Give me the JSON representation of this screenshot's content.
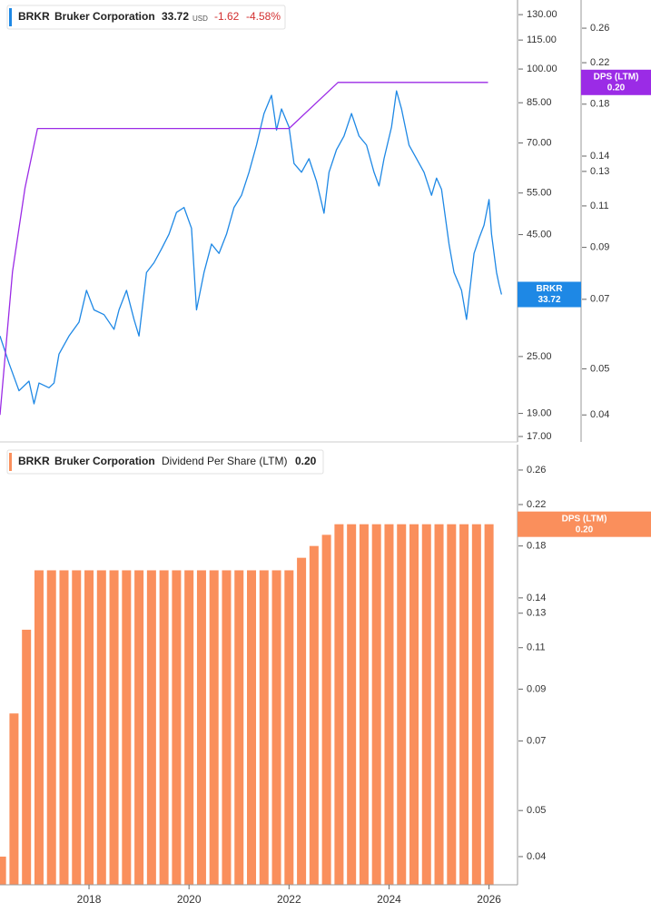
{
  "chart_data": [
    {
      "type": "line",
      "symbol": "BRKR",
      "company": "Bruker Corporation",
      "currency": "USD",
      "change": "-1.62",
      "change_percent": "-4.58%",
      "log": true,
      "xlim": [
        2016.22,
        2026.57
      ],
      "ylim": [
        16.56,
        139.5
      ],
      "yticks": [
        {
          "value": 130,
          "label": "130.00"
        },
        {
          "value": 115,
          "label": "115.00"
        },
        {
          "value": 100,
          "label": "100.00"
        },
        {
          "value": 85,
          "label": "85.00"
        },
        {
          "value": 70,
          "label": "70.00"
        },
        {
          "value": 55,
          "label": "55.00"
        },
        {
          "value": 45,
          "label": "45.00"
        },
        {
          "value": 25,
          "label": "25.00"
        },
        {
          "value": 19,
          "label": "19.00"
        },
        {
          "value": 17,
          "label": "17.00"
        }
      ],
      "y2lim": [
        0.0351,
        0.298
      ],
      "y2ticks": [
        0.26,
        0.22,
        0.18,
        0.14,
        0.13,
        0.11,
        0.09,
        0.07,
        0.05,
        0.04
      ],
      "series": [
        {
          "name": "BRKR",
          "color": "#1e88e5",
          "x": [
            2016.22,
            2016.4,
            2016.6,
            2016.8,
            2016.9,
            2017.0,
            2017.2,
            2017.3,
            2017.4,
            2017.6,
            2017.8,
            2017.95,
            2018.1,
            2018.3,
            2018.5,
            2018.6,
            2018.75,
            2018.9,
            2019.0,
            2019.15,
            2019.3,
            2019.45,
            2019.6,
            2019.75,
            2019.9,
            2020.05,
            2020.15,
            2020.3,
            2020.45,
            2020.6,
            2020.75,
            2020.9,
            2021.05,
            2021.2,
            2021.35,
            2021.5,
            2021.65,
            2021.75,
            2021.85,
            2022.0,
            2022.1,
            2022.25,
            2022.4,
            2022.55,
            2022.7,
            2022.8,
            2022.95,
            2023.1,
            2023.25,
            2023.4,
            2023.55,
            2023.7,
            2023.8,
            2023.9,
            2024.05,
            2024.15,
            2024.25,
            2024.4,
            2024.55,
            2024.7,
            2024.85,
            2024.95,
            2025.05,
            2025.2,
            2025.3,
            2025.45,
            2025.55,
            2025.7,
            2025.8,
            2025.9,
            2026.0,
            2026.05,
            2026.15,
            2026.2,
            2026.25
          ],
          "values": [
            27.6,
            24.2,
            21.2,
            22.2,
            19.9,
            22.0,
            21.5,
            22.0,
            25.3,
            27.6,
            29.5,
            34.4,
            31.3,
            30.6,
            28.5,
            31.3,
            34.4,
            29.9,
            27.6,
            37.5,
            39.3,
            42.0,
            45.1,
            50.1,
            51.3,
            46.4,
            31.3,
            37.5,
            43.0,
            41.1,
            45.1,
            51.3,
            54.4,
            60.8,
            69.3,
            80.7,
            88.1,
            74.5,
            82.5,
            75.6,
            63.4,
            60.8,
            64.9,
            58.2,
            49.9,
            60.8,
            67.8,
            72.4,
            80.7,
            72.4,
            69.3,
            60.8,
            56.9,
            64.9,
            75.6,
            90.0,
            82.5,
            69.3,
            64.9,
            60.8,
            54.4,
            59.1,
            56.0,
            43.0,
            37.5,
            34.4,
            29.9,
            41.1,
            44.2,
            47.1,
            53.3,
            45.1,
            37.5,
            35.4,
            33.72
          ]
        },
        {
          "name": "DPS (LTM)",
          "color": "#9b2be6",
          "axis": "y2",
          "x": [
            2016.22,
            2016.47,
            2016.72,
            2016.97,
            2022.0,
            2022.98,
            2025.98
          ],
          "values": [
            0.04,
            0.08,
            0.12,
            0.16,
            0.16,
            0.2,
            0.2
          ],
          "value_labels": [
            null,
            null,
            null,
            null,
            null,
            null,
            "0.20"
          ]
        }
      ]
    },
    {
      "type": "bar",
      "symbol": "BRKR",
      "company": "Bruker Corporation",
      "log": true,
      "xlim": [
        2016.22,
        2026.57
      ],
      "xticks": [
        2018,
        2020,
        2022,
        2024,
        2026
      ],
      "ylim": [
        0.0349,
        0.294
      ],
      "yticks": [
        0.26,
        0.22,
        0.18,
        0.14,
        0.13,
        0.11,
        0.09,
        0.07,
        0.05,
        0.04
      ],
      "series": [
        {
          "name": "Dividend Per Share (LTM)",
          "short_name": "DPS (LTM)",
          "color": "#fa8f5c",
          "x": [
            2016.25,
            2016.5,
            2016.75,
            2017.0,
            2017.25,
            2017.5,
            2017.75,
            2018.0,
            2018.25,
            2018.5,
            2018.75,
            2019.0,
            2019.25,
            2019.5,
            2019.75,
            2020.0,
            2020.25,
            2020.5,
            2020.75,
            2021.0,
            2021.25,
            2021.5,
            2021.75,
            2022.0,
            2022.25,
            2022.5,
            2022.75,
            2023.0,
            2023.25,
            2023.5,
            2023.75,
            2024.0,
            2024.25,
            2024.5,
            2024.75,
            2025.0,
            2025.25,
            2025.5,
            2025.75,
            2026.0
          ],
          "values": [
            0.04,
            0.08,
            0.12,
            0.16,
            0.16,
            0.16,
            0.16,
            0.16,
            0.16,
            0.16,
            0.16,
            0.16,
            0.16,
            0.16,
            0.16,
            0.16,
            0.16,
            0.16,
            0.16,
            0.16,
            0.16,
            0.16,
            0.16,
            0.16,
            0.17,
            0.18,
            0.19,
            0.2,
            0.2,
            0.2,
            0.2,
            0.2,
            0.2,
            0.2,
            0.2,
            0.2,
            0.2,
            0.2,
            0.2,
            0.2
          ],
          "value_labels": [
            null,
            null,
            null,
            null,
            null,
            null,
            null,
            null,
            null,
            null,
            null,
            null,
            null,
            null,
            null,
            null,
            null,
            null,
            null,
            null,
            null,
            null,
            null,
            null,
            null,
            null,
            null,
            null,
            null,
            null,
            null,
            null,
            null,
            null,
            null,
            null,
            null,
            null,
            null,
            "0.20"
          ]
        }
      ]
    }
  ]
}
